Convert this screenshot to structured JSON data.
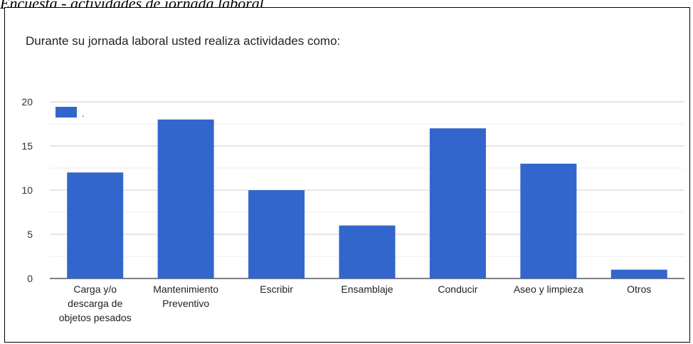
{
  "caption": "Encuesta - actividades de jornada laboral",
  "chart_data": {
    "type": "bar",
    "title": "Durante su jornada laboral usted realiza actividades como:",
    "categories": [
      [
        "Carga y/o",
        "descarga de",
        "objetos pesados"
      ],
      [
        "Mantenimiento",
        "Preventivo"
      ],
      [
        "Escribir"
      ],
      [
        "Ensamblaje"
      ],
      [
        "Conducir"
      ],
      [
        "Aseo y limpieza"
      ],
      [
        "Otros"
      ]
    ],
    "series": [
      {
        "name": ".",
        "color": "#3366cc",
        "values": [
          12,
          18,
          10,
          6,
          17,
          13,
          1
        ]
      }
    ],
    "ylim": [
      0,
      20
    ],
    "yticks": [
      0,
      5,
      10,
      15,
      20
    ],
    "grid": true,
    "legend": "top-left",
    "xlabel": "",
    "ylabel": ""
  }
}
